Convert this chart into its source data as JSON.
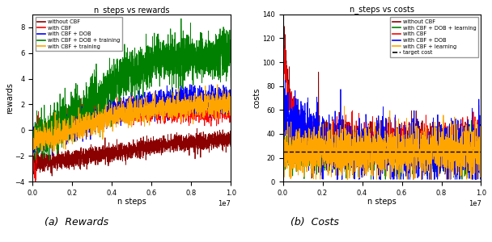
{
  "title_left": "n_steps vs rewards",
  "title_right": "n_steps vs costs",
  "xlabel": "n steps",
  "ylabel_left": "rewards",
  "ylabel_right": "costs",
  "caption_left": "(a)  Rewards",
  "caption_right": "(b)  Costs",
  "target_cost": 25,
  "xlim": [
    0,
    10000000
  ],
  "ylim_left": [
    -4,
    9
  ],
  "ylim_right": [
    0,
    140
  ],
  "yticks_left": [
    -4,
    -2,
    0,
    2,
    4,
    6,
    8
  ],
  "yticks_right": [
    0,
    20,
    40,
    60,
    80,
    100,
    120,
    140
  ],
  "xticks_norm": [
    0.0,
    0.2,
    0.4,
    0.6,
    0.8,
    1.0
  ],
  "colors_left": {
    "without_CBF": "#8B0000",
    "with_CBF": "#FF0000",
    "with_CBF_DOB": "#0000FF",
    "with_CBF_DOB_training": "#008000",
    "with_CBF_training": "#FFA500"
  },
  "colors_right": {
    "without_CBF": "#8B0000",
    "with_CBF_DOB_learning": "#008000",
    "with_CBF": "#FF0000",
    "with_CBF_DOB": "#0000FF",
    "with_CBF_learning": "#FFA500"
  },
  "legend_left": [
    {
      "label": "without CBF",
      "color": "#8B0000"
    },
    {
      "label": "with CBF",
      "color": "#FF0000"
    },
    {
      "label": "with CBF + DOB",
      "color": "#0000FF"
    },
    {
      "label": "with CBF + DOB + training",
      "color": "#008000"
    },
    {
      "label": "with CBF + training",
      "color": "#FFA500"
    }
  ],
  "legend_right": [
    {
      "label": "without CBF",
      "color": "#8B0000"
    },
    {
      "label": "with CBF + DOB + learning",
      "color": "#008000"
    },
    {
      "label": "with CBF",
      "color": "#FF0000"
    },
    {
      "label": "with CBF + DOB",
      "color": "#0000FF"
    },
    {
      "label": "with CBF + learning",
      "color": "#FFA500"
    },
    {
      "label": "target cost",
      "color": "#000000",
      "linestyle": "--"
    }
  ],
  "lw": 0.6,
  "shade_alpha": 0.18,
  "figsize": [
    6.08,
    3.0
  ],
  "dpi": 100
}
